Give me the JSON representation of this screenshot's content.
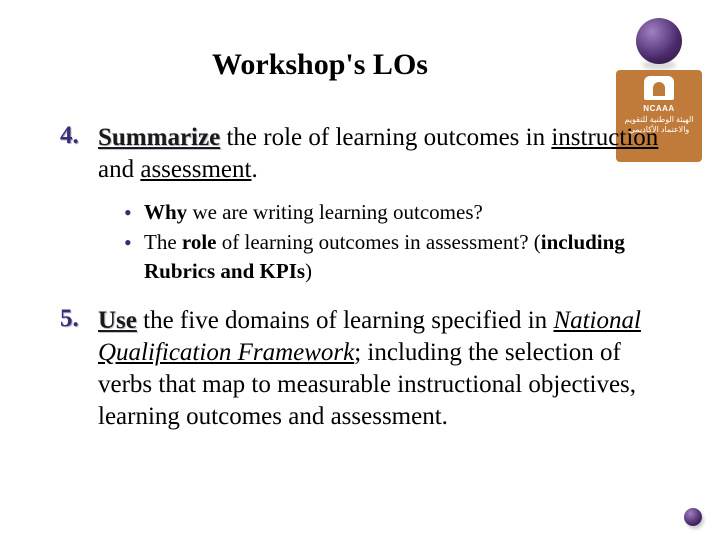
{
  "title": "Workshop's LOs",
  "logo": {
    "acronym": "NCAAA",
    "arabic_line1": "الهيئة الوطنية للتقويم",
    "arabic_line2": "والاعتماد الأكاديمي"
  },
  "colors": {
    "accent_number": "#3b2a7a",
    "bullet": "#3b2a7a",
    "logo_box": "#c07a3a",
    "logo_sphere_dark": "#2a1640",
    "background": "#ffffff"
  },
  "items": [
    {
      "number": "4.",
      "verb": "Summarize",
      "rest_before_underline": " the role of learning outcomes in ",
      "underline_word": "instruction",
      "mid_text": " and ",
      "underline_word2": "assessment",
      "tail": ".",
      "sub": [
        {
          "pre_bold": "",
          "bold1": "Why",
          "mid": " we are writing learning outcomes?",
          "bold2": "",
          "paren": ""
        },
        {
          "pre_bold": "The ",
          "bold1": "role",
          "mid": " of learning outcomes in assessment? ",
          "bold2": "",
          "paren_open": "(",
          "paren_bold": "including Rubrics and KPIs",
          "paren_close": ")"
        }
      ]
    },
    {
      "number": "5.",
      "verb": "Use",
      "rest": " the five domains of learning specified in ",
      "italic_underline": "National Qualification Framework",
      "after": "; including the selection of verbs that map to measurable instructional objectives, learning outcomes and assessment."
    }
  ]
}
